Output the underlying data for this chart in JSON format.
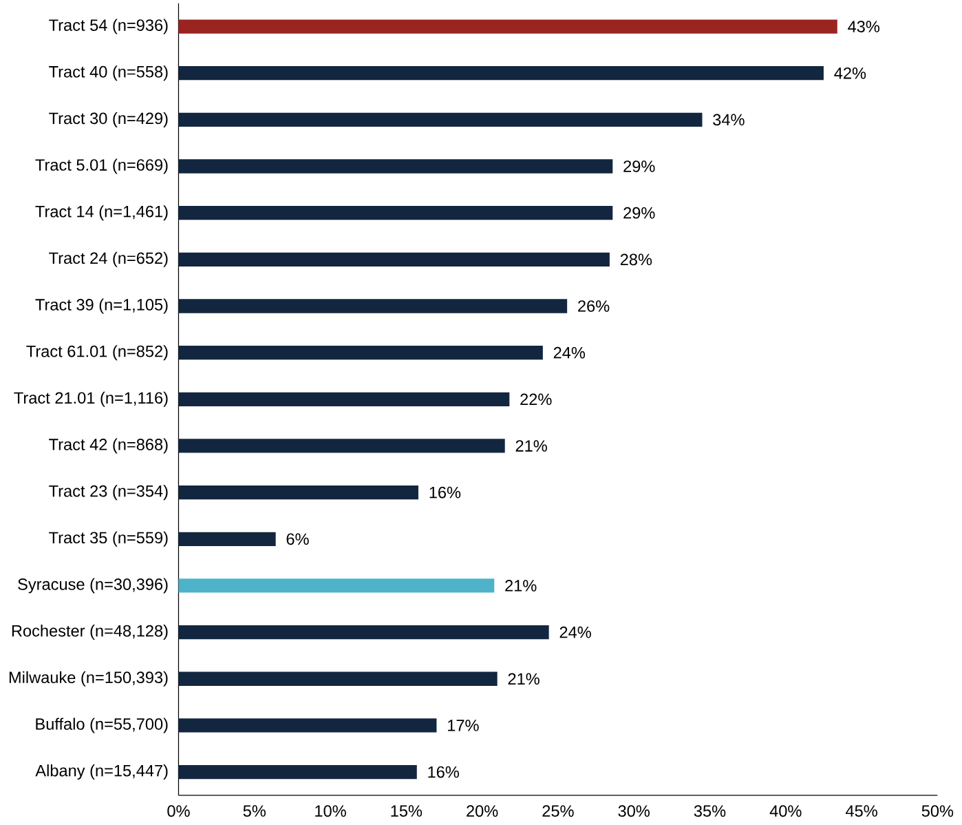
{
  "chart_data": {
    "type": "bar",
    "orientation": "horizontal",
    "categories": [
      "Tract 54 (n=936)",
      "Tract 40 (n=558)",
      "Tract 30 (n=429)",
      "Tract 5.01 (n=669)",
      "Tract 14 (n=1,461)",
      "Tract 24 (n=652)",
      "Tract 39 (n=1,105)",
      "Tract 61.01 (n=852)",
      "Tract 21.01 (n=1,116)",
      "Tract 42 (n=868)",
      "Tract 23 (n=354)",
      "Tract 35 (n=559)",
      "Syracuse (n=30,396)",
      "Rochester (n=48,128)",
      "Milwauke (n=150,393)",
      "Buffalo (n=55,700)",
      "Albany  (n=15,447)"
    ],
    "values": [
      43.4,
      42.5,
      34.5,
      28.6,
      28.6,
      28.4,
      25.6,
      24.0,
      21.8,
      21.5,
      15.8,
      6.4,
      20.8,
      24.4,
      21.0,
      17.0,
      15.7
    ],
    "value_labels": [
      "43%",
      "42%",
      "34%",
      "29%",
      "29%",
      "28%",
      "26%",
      "24%",
      "22%",
      "21%",
      "16%",
      "6%",
      "21%",
      "24%",
      "21%",
      "17%",
      "16%"
    ],
    "colors": [
      "#9b2420",
      "#13263f",
      "#13263f",
      "#13263f",
      "#13263f",
      "#13263f",
      "#13263f",
      "#13263f",
      "#13263f",
      "#13263f",
      "#13263f",
      "#13263f",
      "#4eb3c8",
      "#13263f",
      "#13263f",
      "#13263f",
      "#13263f"
    ],
    "xlim": [
      0,
      50
    ],
    "xticks": [
      {
        "value": 0,
        "label": "0%"
      },
      {
        "value": 5,
        "label": "5%"
      },
      {
        "value": 10,
        "label": "10%"
      },
      {
        "value": 15,
        "label": "15%"
      },
      {
        "value": 20,
        "label": "20%"
      },
      {
        "value": 25,
        "label": "25%"
      },
      {
        "value": 30,
        "label": "30%"
      },
      {
        "value": 35,
        "label": "35%"
      },
      {
        "value": 40,
        "label": "40%"
      },
      {
        "value": 45,
        "label": "45%"
      },
      {
        "value": 50,
        "label": "50%"
      }
    ],
    "grid": false
  }
}
